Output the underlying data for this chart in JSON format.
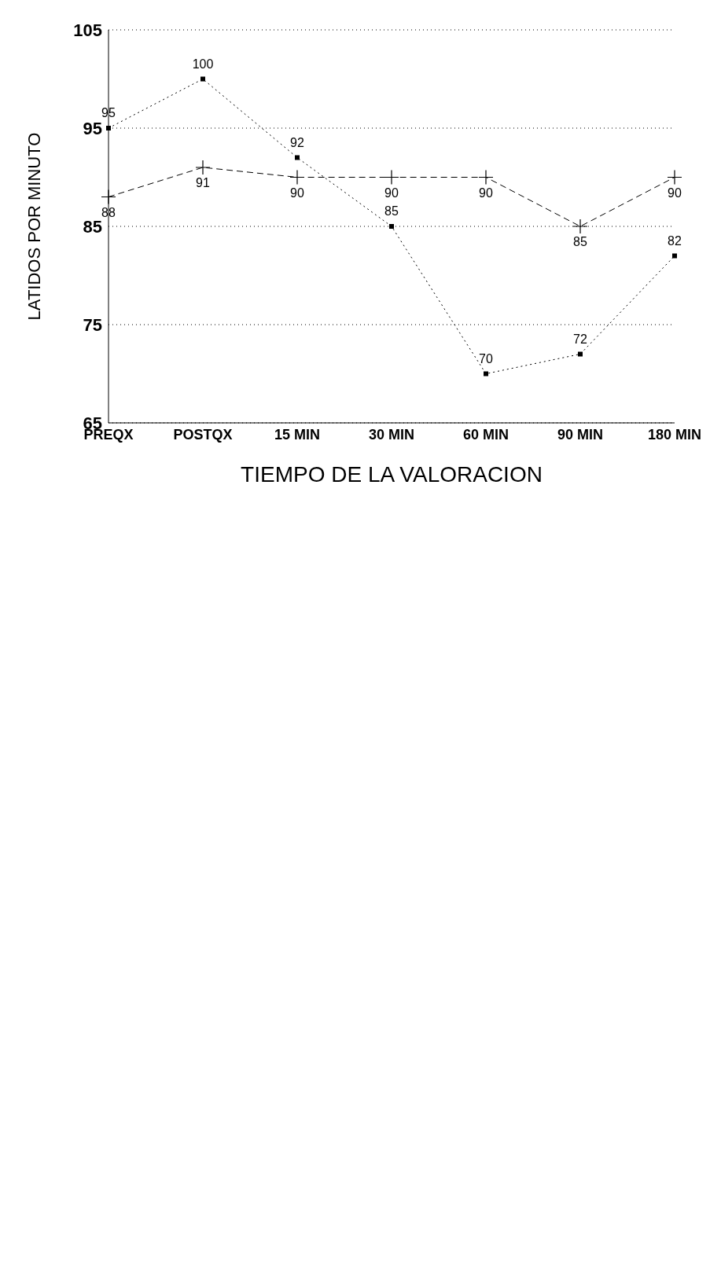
{
  "chart_data": {
    "type": "line",
    "xlabel": "TIEMPO DE LA VALORACION",
    "ylabel": "LATIDOS POR MINUTO",
    "categories": [
      "PREQX",
      "POSTQX",
      "15 MIN",
      "30 MIN",
      "60 MIN",
      "90 MIN",
      "180 MIN"
    ],
    "series": [
      {
        "color": "#000000",
        "values": [
          88,
          91,
          90,
          90,
          90,
          85,
          90
        ],
        "marker": "cross",
        "line_style": "dashed"
      },
      {
        "color": "#000000",
        "values": [
          95,
          100,
          92,
          85,
          70,
          72,
          82
        ],
        "marker": "square",
        "line_style": "dotted"
      }
    ],
    "ylim": [
      65,
      105
    ],
    "yticks": [
      65,
      75,
      85,
      95,
      105
    ],
    "grid": "y",
    "data_labels": true
  }
}
